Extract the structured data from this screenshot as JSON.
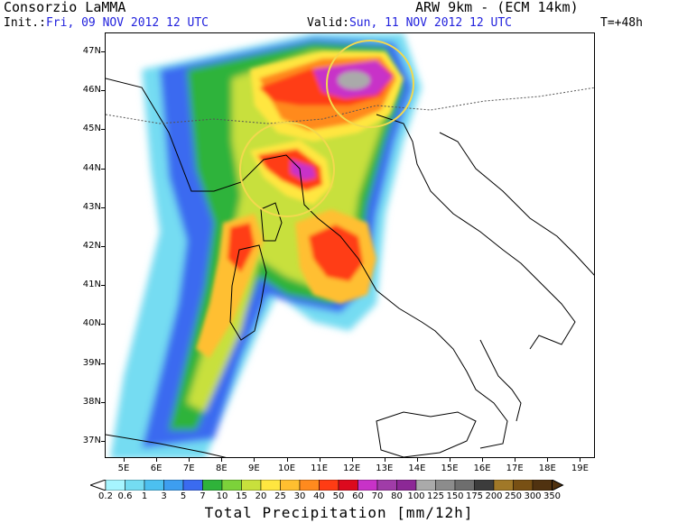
{
  "header": {
    "left_title": "Consorzio LaMMA",
    "init_prefix": "Init.:",
    "init_value": "Fri, 09 NOV 2012  12 UTC",
    "model_title": "ARW 9km - (ECM 14km)",
    "valid_prefix": "Valid:",
    "valid_value": "Sun, 11 NOV 2012  12 UTC",
    "forecast_step": "T=+48h"
  },
  "map": {
    "lat_labels": [
      "47N",
      "46N",
      "45N",
      "44N",
      "43N",
      "42N",
      "41N",
      "40N",
      "39N",
      "38N",
      "37N"
    ],
    "lon_labels": [
      "5E",
      "6E",
      "7E",
      "8E",
      "9E",
      "10E",
      "11E",
      "12E",
      "13E",
      "14E",
      "15E",
      "16E",
      "17E",
      "18E",
      "19E"
    ],
    "highlight_circles": 2,
    "highlight_color": "#f2d94e",
    "coastline_color": "#000000"
  },
  "colorbar": {
    "title": "Total Precipitation [mm/12h]",
    "levels": [
      "0.2",
      "0.6",
      "1",
      "3",
      "5",
      "7",
      "10",
      "15",
      "20",
      "25",
      "30",
      "40",
      "50",
      "60",
      "70",
      "80",
      "100",
      "125",
      "150",
      "175",
      "200",
      "250",
      "300",
      "350"
    ],
    "colors": [
      "#ffffff",
      "#a6f5ff",
      "#74dcf2",
      "#4cc0f0",
      "#3d9ef0",
      "#3a6bf0",
      "#2fb33a",
      "#7cd23a",
      "#c8e03c",
      "#ffe640",
      "#ffbf30",
      "#ff8a1e",
      "#ff3c14",
      "#dc0a1e",
      "#c832c8",
      "#a03ca8",
      "#8c2896",
      "#aaaaaa",
      "#8c8c8c",
      "#6e6e6e",
      "#3c3c3c",
      "#a07828",
      "#785014",
      "#503210"
    ]
  }
}
